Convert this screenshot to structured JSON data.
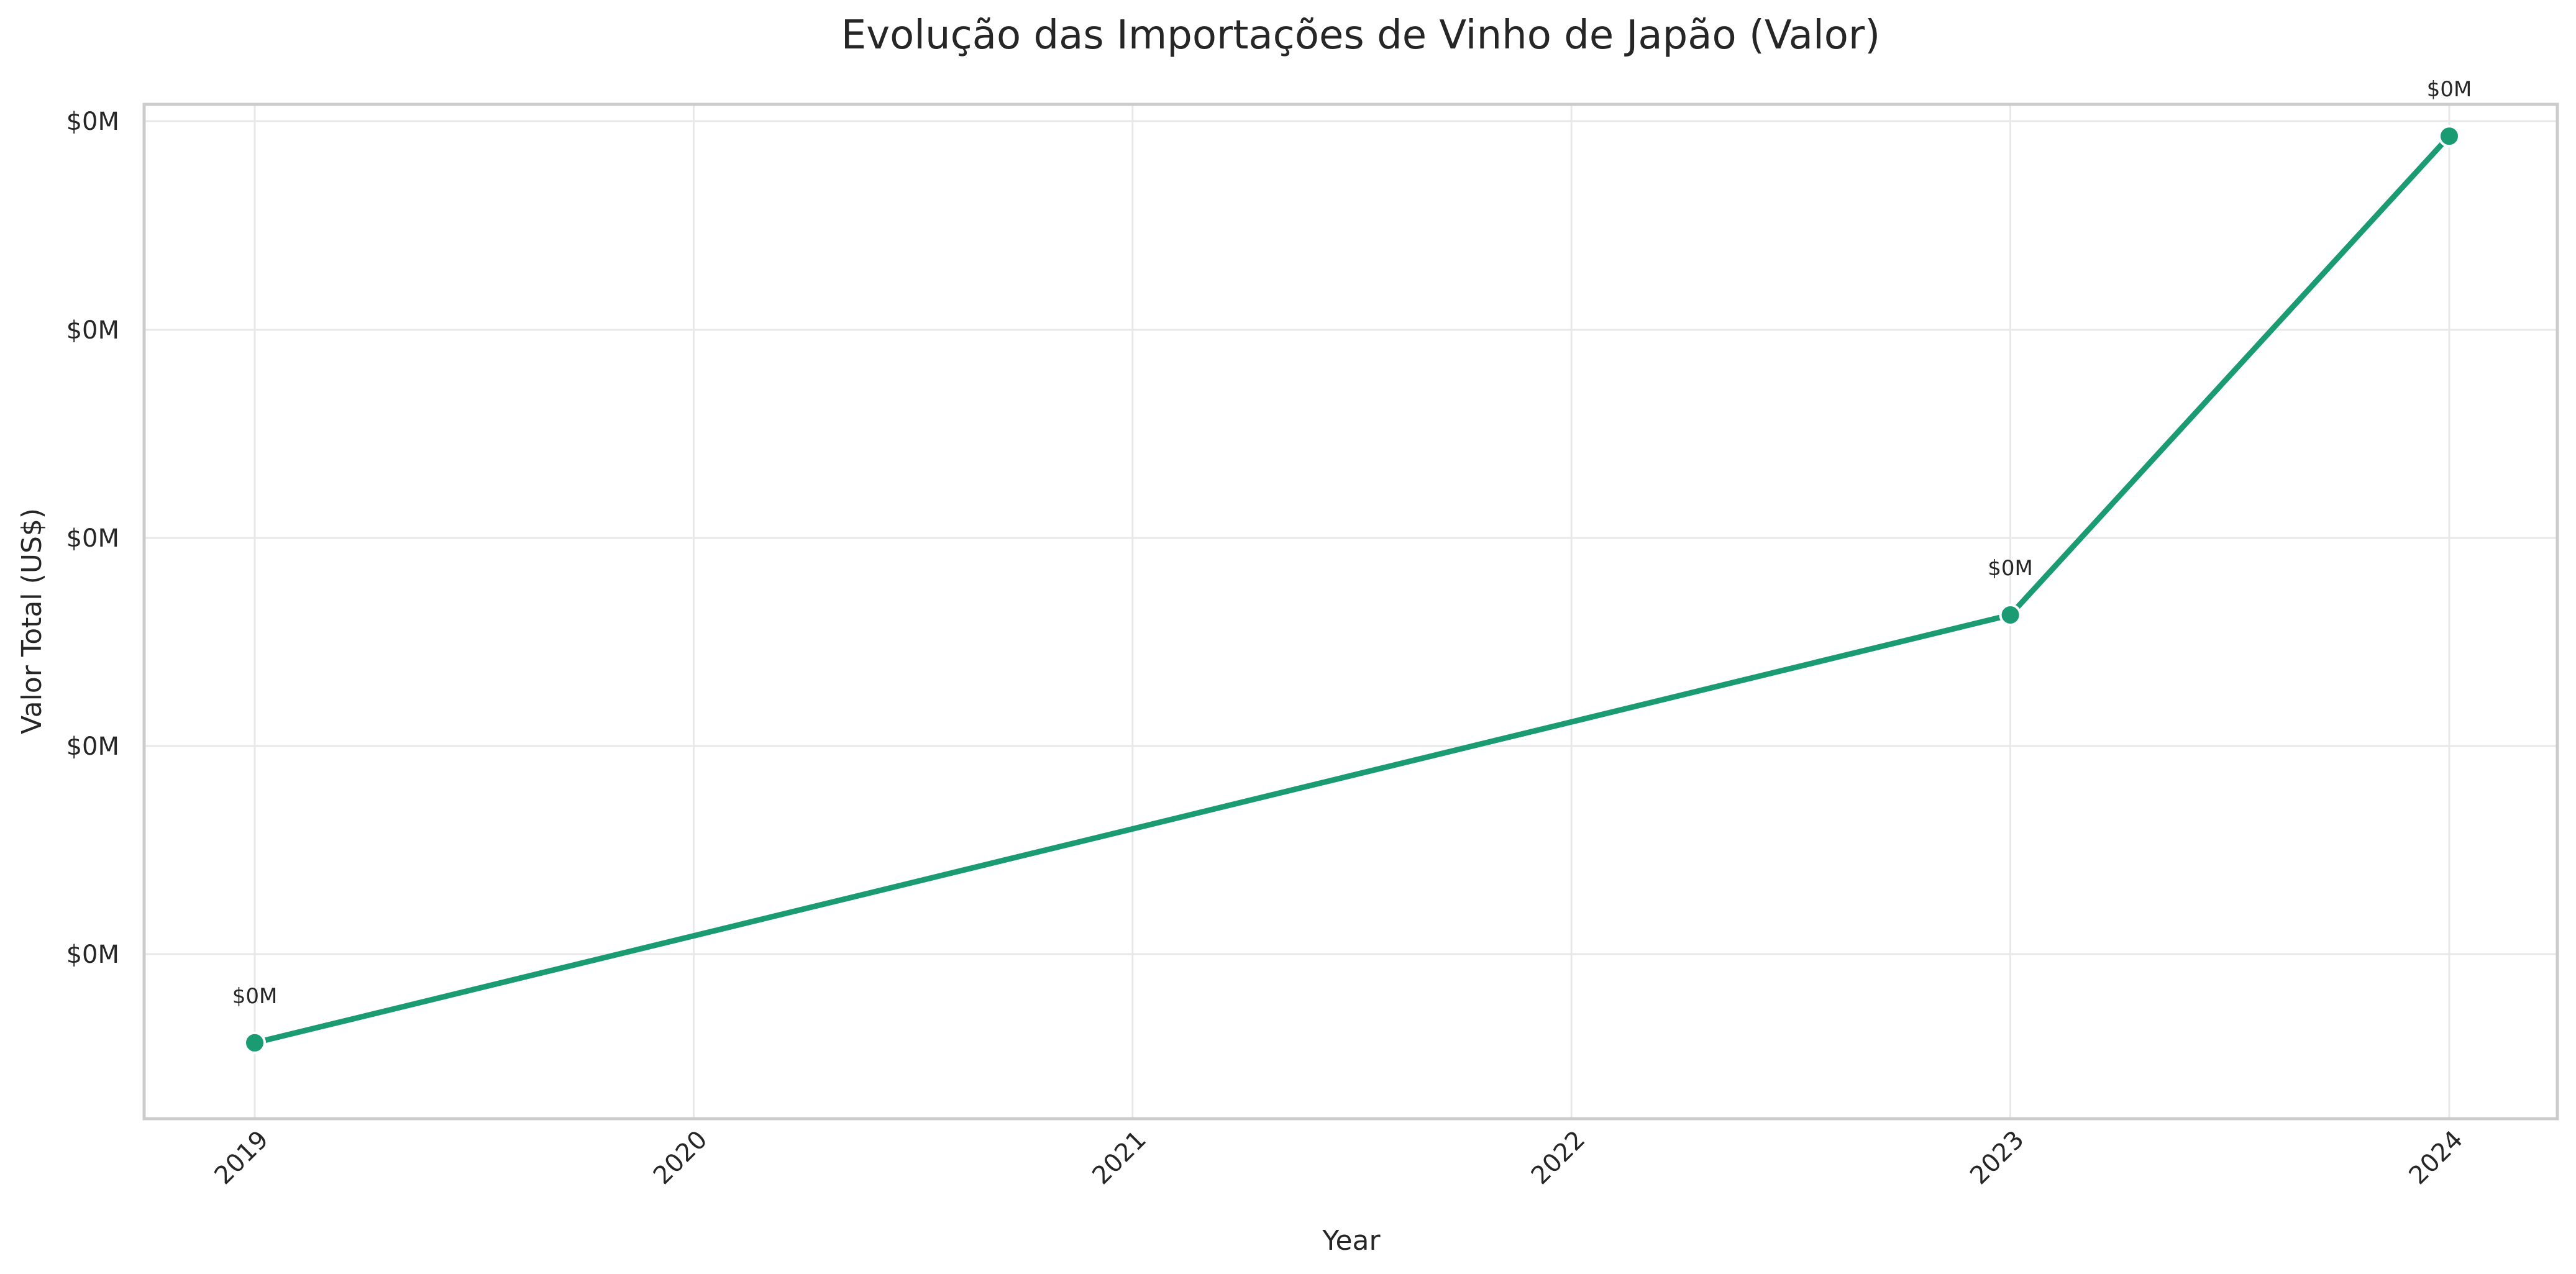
{
  "chart_data": {
    "type": "line",
    "title": "Evolução das Importações de Vinho de Japão (Valor)",
    "xlabel": "Year",
    "ylabel": "Valor Total (US$)",
    "x": [
      2019,
      2023,
      2024
    ],
    "x_ticks": [
      "2019",
      "2020",
      "2021",
      "2022",
      "2023",
      "2024"
    ],
    "y_ticks": [
      "$0M",
      "$0M",
      "$0M",
      "$0M",
      "$0M"
    ],
    "ylim": [
      0,
      1
    ],
    "series": [
      {
        "values": [
          0.08,
          0.5,
          0.97
        ],
        "point_labels": [
          "$0M",
          "$0M",
          "$0M"
        ]
      }
    ],
    "colors": {
      "line": "#1b9b72",
      "marker_edge": "#ffffff"
    },
    "grid": true,
    "legend": "none"
  }
}
